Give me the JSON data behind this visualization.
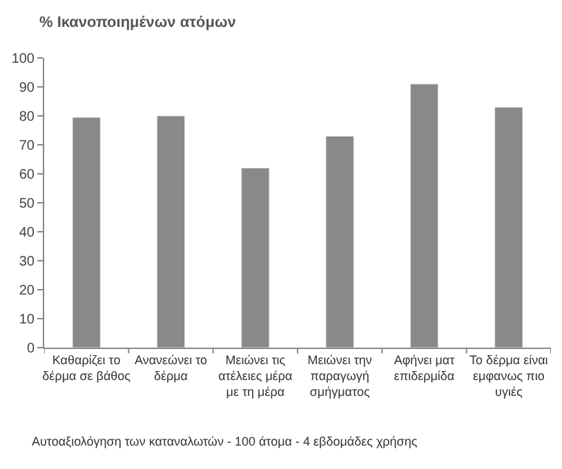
{
  "chart_data": {
    "type": "bar",
    "title": "% Ικανοποιημένων ατόμων",
    "categories": [
      "Καθαρίζει το δέρμα σε βάθος",
      "Ανανεώνει το δέρμα",
      "Μειώνει τις ατέλειες μέρα με τη μέρα",
      "Μειώνει την παραγωγή σμήγματος",
      "Αφήνει ματ επιδερμίδα",
      "Το δέρμα είναι εμφανως πιο υγιές"
    ],
    "values": [
      79.5,
      80,
      62,
      73,
      91,
      83
    ],
    "color": "#8a8888",
    "ylim": [
      0,
      100
    ],
    "yticks": [
      0,
      10,
      20,
      30,
      40,
      50,
      60,
      70,
      80,
      90,
      100
    ],
    "annotations": [
      "Αυτοαξιολόγηση των καταναλωτών - 100 άτομα - 4 εβδομάδες χρήσης"
    ]
  }
}
